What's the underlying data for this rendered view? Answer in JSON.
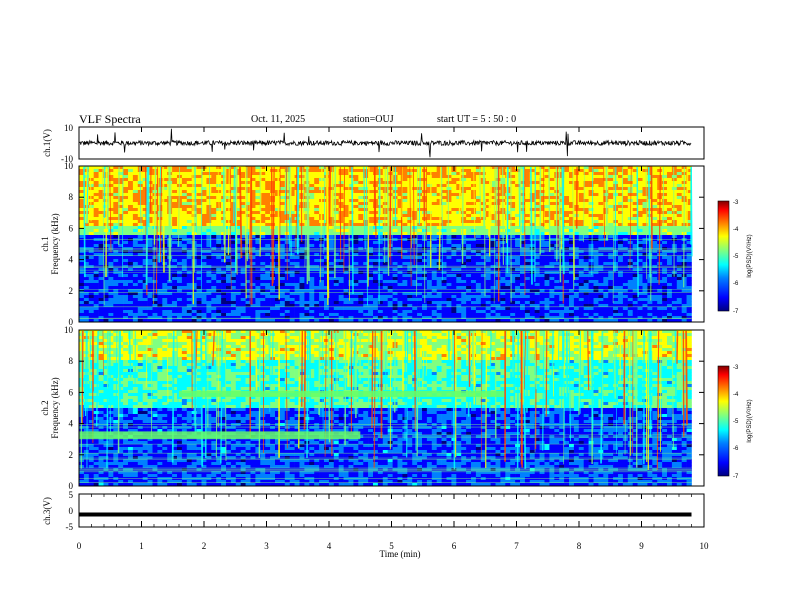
{
  "header": {
    "title": "VLF Spectra",
    "date": "Oct. 11, 2025",
    "station": "station=OUJ",
    "start": "start  UT =   5 : 50 : 0"
  },
  "colors": {
    "frame": "#000000",
    "cmap": [
      "#00007f",
      "#0000ff",
      "#0080ff",
      "#00ffff",
      "#80ff80",
      "#ffff00",
      "#ff8000",
      "#ff0000",
      "#7f0000"
    ]
  },
  "chart_data": [
    {
      "type": "line",
      "panel": "ch1-waveform",
      "ylabel": "ch.1(V)",
      "ylim": [
        -10,
        10
      ],
      "yticks": [
        "10",
        "-10"
      ],
      "baseline_v": 0,
      "noise_amplitude_v": 1.5
    },
    {
      "type": "heatmap",
      "panel": "ch1-spectrogram",
      "ylabel_top": "ch.1",
      "ylabel": "Frequency (kHz)",
      "ylim": [
        0,
        10
      ],
      "yticks": [
        "0",
        "2",
        "4",
        "6",
        "8",
        "10"
      ],
      "xlim": [
        0,
        9.8
      ],
      "colorbar": {
        "label": "log(PSD)(V²/Hz)",
        "range": [
          -7,
          -3
        ],
        "ticks": [
          "-3",
          "-4",
          "-5",
          "-6",
          "-7"
        ]
      },
      "bands_khz": [
        {
          "from": 0,
          "to": 5.6,
          "level": "low"
        },
        {
          "from": 5.6,
          "to": 6.2,
          "level": "mid"
        },
        {
          "from": 6.2,
          "to": 10,
          "level": "high"
        }
      ]
    },
    {
      "type": "heatmap",
      "panel": "ch2-spectrogram",
      "ylabel_top": "ch.2",
      "ylabel": "Frequency (kHz)",
      "ylim": [
        0,
        10
      ],
      "yticks": [
        "0",
        "2",
        "4",
        "6",
        "8",
        "10"
      ],
      "xlim": [
        0,
        9.8
      ],
      "colorbar": {
        "label": "log(PSD)(V²/Hz)",
        "range": [
          -7,
          -3
        ],
        "ticks": [
          "-3",
          "-4",
          "-5",
          "-6",
          "-7"
        ]
      },
      "features": [
        {
          "name": "band-3.2kHz",
          "freq_khz": [
            3.0,
            3.5
          ],
          "t_min": [
            0,
            4.5
          ]
        },
        {
          "name": "band-5.9kHz",
          "freq_khz": [
            5.7,
            6.1
          ],
          "t_min": [
            1.6,
            6.8
          ]
        }
      ]
    },
    {
      "type": "line",
      "panel": "ch3-waveform",
      "ylabel": "ch.3(V)",
      "ylim": [
        -5,
        5
      ],
      "yticks": [
        "5",
        "0",
        "-5"
      ],
      "baseline_v": -1.2
    }
  ],
  "xaxis": {
    "label": "Time (min)",
    "range": [
      0,
      10
    ],
    "ticks": [
      "0",
      "1",
      "2",
      "3",
      "4",
      "5",
      "6",
      "7",
      "8",
      "9",
      "10"
    ]
  }
}
